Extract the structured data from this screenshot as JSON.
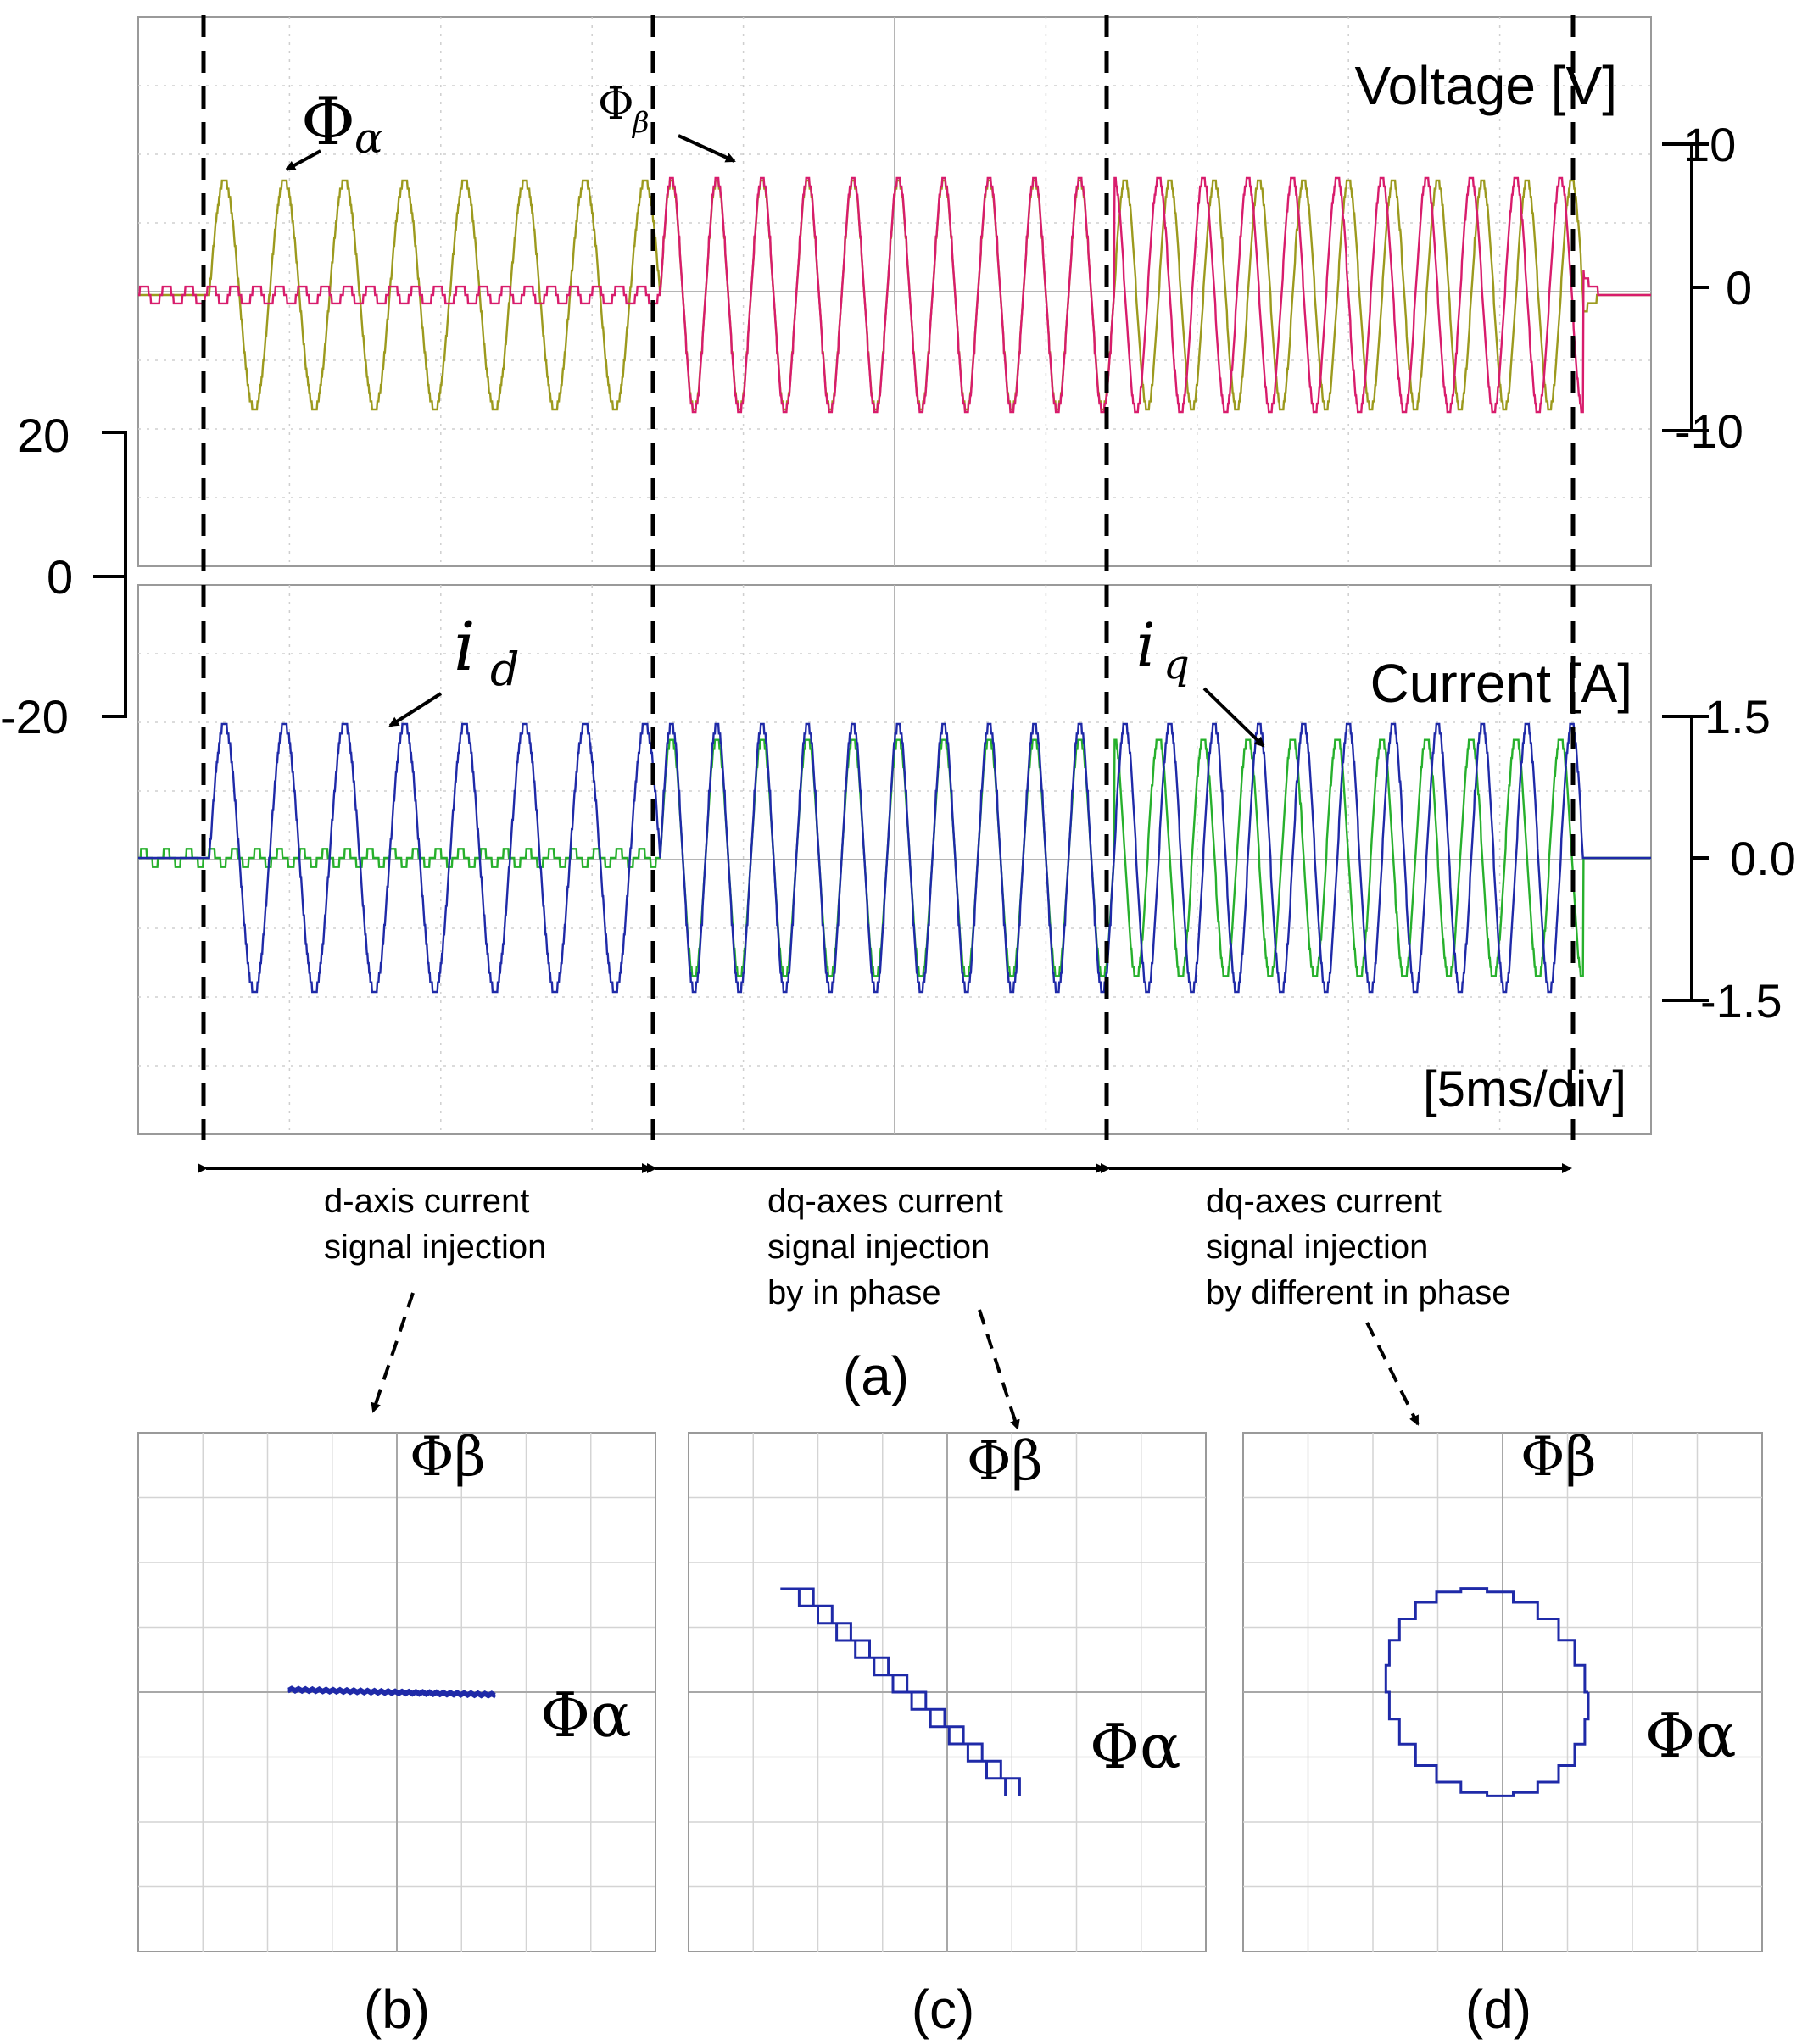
{
  "chart_data": {
    "type": "line",
    "panel_a": {
      "caption": "(a)",
      "timebase": "[5ms/div]",
      "voltage_scope": {
        "title": "Voltage [V]",
        "right_scale": {
          "ticks": [
            "10",
            "0",
            "-10"
          ],
          "range": [
            -10,
            10
          ]
        },
        "left_scale": {
          "ticks": [
            "20",
            "0",
            "-20"
          ],
          "range": [
            -20,
            20
          ]
        },
        "series": [
          {
            "name": "Φα",
            "symbol": "Φ",
            "subscript": "α",
            "color": "#9c9a1e",
            "segments": [
              {
                "t": [
                  0.0,
                  0.047
                ],
                "amplitude": 0.0
              },
              {
                "t": [
                  0.047,
                  0.345
                ],
                "amplitude": 1.0,
                "cycles": 7.5
              },
              {
                "t": [
                  0.345,
                  0.645
                ],
                "amplitude": 1.0,
                "cycles": 10
              },
              {
                "t": [
                  0.645,
                  0.955
                ],
                "amplitude": 1.0,
                "cycles": 10.5
              },
              {
                "t": [
                  0.955,
                  1.0
                ],
                "amplitude": 0.0,
                "decay": true
              }
            ]
          },
          {
            "name": "Φβ",
            "symbol": "Φ",
            "subscript": "β",
            "color": "#d81c6c",
            "segments": [
              {
                "t": [
                  0.0,
                  0.345
                ],
                "amplitude": 0.1
              },
              {
                "t": [
                  0.345,
                  0.645
                ],
                "amplitude": 1.0,
                "cycles": 10,
                "phase_deg": 0
              },
              {
                "t": [
                  0.645,
                  0.955
                ],
                "amplitude": 1.0,
                "cycles": 10.5,
                "phase_deg": 90
              },
              {
                "t": [
                  0.955,
                  1.0
                ],
                "amplitude": 0.0,
                "decay": true
              }
            ]
          }
        ]
      },
      "current_scope": {
        "title": "Current [A]",
        "right_scale": {
          "ticks": [
            "1.5",
            "0.0",
            "-1.5"
          ],
          "range": [
            -1.5,
            1.5
          ]
        },
        "series": [
          {
            "name": "i_d",
            "symbol": "i",
            "subscript": "d",
            "color": "#1f2aa8",
            "segments": [
              {
                "t": [
                  0.0,
                  0.047
                ],
                "amplitude": 0.0
              },
              {
                "t": [
                  0.047,
                  0.345
                ],
                "amplitude": 1.0,
                "cycles": 7.5
              },
              {
                "t": [
                  0.345,
                  0.645
                ],
                "amplitude": 1.0,
                "cycles": 10
              },
              {
                "t": [
                  0.645,
                  0.955
                ],
                "amplitude": 1.0,
                "cycles": 10.5
              },
              {
                "t": [
                  0.955,
                  1.0
                ],
                "amplitude": 0.0
              }
            ]
          },
          {
            "name": "i_q",
            "symbol": "i",
            "subscript": "q",
            "color": "#27b02c",
            "segments": [
              {
                "t": [
                  0.0,
                  0.345
                ],
                "amplitude": 0.05
              },
              {
                "t": [
                  0.345,
                  0.645
                ],
                "amplitude": 0.95,
                "cycles": 10,
                "phase_deg": 0
              },
              {
                "t": [
                  0.645,
                  0.955
                ],
                "amplitude": 0.95,
                "cycles": 10.5,
                "phase_deg": 90
              },
              {
                "t": [
                  0.955,
                  1.0
                ],
                "amplitude": 0.0
              }
            ]
          }
        ]
      },
      "intervals": [
        {
          "label_lines": [
            "d-axis current",
            "signal injection"
          ],
          "t": [
            0.047,
            0.345
          ]
        },
        {
          "label_lines": [
            "dq-axes current",
            "signal injection",
            "by in phase"
          ],
          "t": [
            0.345,
            0.645
          ]
        },
        {
          "label_lines": [
            "dq-axes current",
            "signal injection",
            "by different in phase"
          ],
          "t": [
            0.645,
            0.955
          ]
        }
      ]
    },
    "xy_plots": [
      {
        "caption": "(b)",
        "x_label": "Φα",
        "y_label": "Φβ",
        "shape": "horizontal line",
        "x_range": [
          -0.42,
          0.38
        ],
        "color": "#1f2aa8"
      },
      {
        "caption": "(c)",
        "x_label": "Φα",
        "y_label": "Φβ",
        "shape": "diagonal line",
        "from": [
          -0.62,
          0.4
        ],
        "to": [
          0.25,
          -0.4
        ],
        "color": "#1f2aa8"
      },
      {
        "caption": "(d)",
        "x_label": "Φα",
        "y_label": "Φβ",
        "shape": "ellipse",
        "center": [
          -0.06,
          0.0
        ],
        "radius": [
          0.39,
          0.4
        ],
        "color": "#1f2aa8"
      }
    ]
  }
}
